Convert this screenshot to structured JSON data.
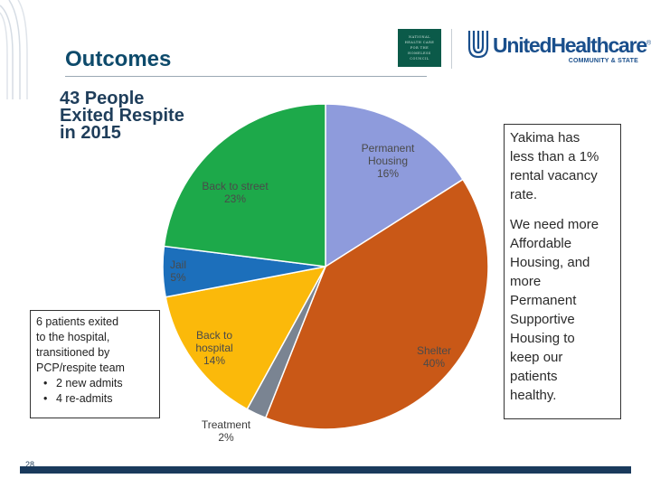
{
  "slide": {
    "title": "Outcomes",
    "page_number": "28"
  },
  "logos": {
    "council_lines": [
      "NATIONAL",
      "HEALTH CARE",
      "FOR THE",
      "HOMELESS",
      "COUNCIL"
    ],
    "uhc_name": "UnitedHealthcare",
    "uhc_registered": "®",
    "uhc_sub": "COMMUNITY & STATE"
  },
  "chart_data": {
    "type": "pie",
    "title": "43 People Exited Respite in 2015",
    "title_lines": [
      "43 People",
      "Exited Respite",
      "in 2015"
    ],
    "start": "top, clockwise",
    "slices": [
      {
        "name": "Permanent Housing",
        "label_lines": [
          "Permanent",
          "Housing"
        ],
        "value": 16,
        "value_text": "16%",
        "color": "#8e9bdc",
        "label_placement": "inside"
      },
      {
        "name": "Shelter",
        "label_lines": [
          "Shelter"
        ],
        "value": 40,
        "value_text": "40%",
        "color": "#c95817",
        "label_placement": "inside"
      },
      {
        "name": "Treatment",
        "label_lines": [
          "Treatment"
        ],
        "value": 2,
        "value_text": "2%",
        "color": "#7a8492",
        "label_placement": "outside"
      },
      {
        "name": "Back to hospital",
        "label_lines": [
          "Back to",
          "hospital"
        ],
        "value": 14,
        "value_text": "14%",
        "color": "#fbb90a",
        "label_placement": "inside"
      },
      {
        "name": "Jail",
        "label_lines": [
          "Jail"
        ],
        "value": 5,
        "value_text": "5%",
        "color": "#1c6fbb",
        "label_placement": "inside"
      },
      {
        "name": "Back to street",
        "label_lines": [
          "Back to street"
        ],
        "value": 23,
        "value_text": "23%",
        "color": "#1da94a",
        "label_placement": "inside"
      }
    ]
  },
  "hospital_note": {
    "lines": [
      "6 patients exited",
      "to the hospital,",
      "transitioned by",
      "PCP/respite team"
    ],
    "bullets": [
      "2 new admits",
      "4 re-admits"
    ]
  },
  "sidebar_note": {
    "paragraph1": [
      "Yakima has",
      "less than a 1%",
      "rental vacancy",
      "rate."
    ],
    "paragraph2": [
      "We need more",
      "Affordable",
      "Housing, and",
      "more",
      "Permanent",
      "Supportive",
      "Housing to",
      "keep our",
      "patients",
      "healthy."
    ]
  }
}
